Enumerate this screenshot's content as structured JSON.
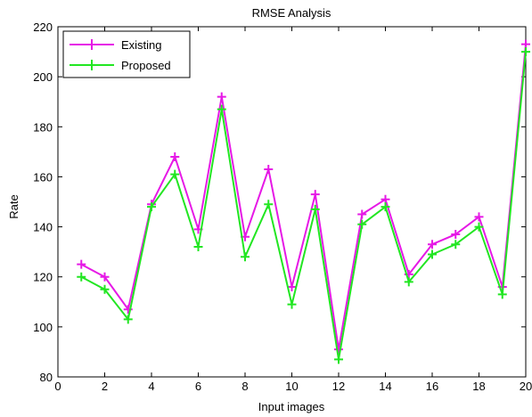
{
  "chart_data": {
    "type": "line",
    "title": "RMSE Analysis",
    "xlabel": "Input images",
    "ylabel": "Rate",
    "xlim": [
      0,
      20
    ],
    "ylim": [
      80,
      220
    ],
    "xticks": [
      0,
      2,
      4,
      6,
      8,
      10,
      12,
      14,
      16,
      18,
      20
    ],
    "yticks": [
      80,
      100,
      120,
      140,
      160,
      180,
      200,
      220
    ],
    "grid": false,
    "legend_position": "top-left",
    "x": [
      1,
      2,
      3,
      4,
      5,
      6,
      7,
      8,
      9,
      10,
      11,
      12,
      13,
      14,
      15,
      16,
      17,
      18,
      19,
      20
    ],
    "series": [
      {
        "name": "Existing",
        "color": "#e619e6",
        "marker": "plus",
        "values": [
          125,
          120,
          107,
          149,
          168,
          139,
          192,
          136,
          163,
          116,
          153,
          91,
          145,
          151,
          121,
          133,
          137,
          144,
          116,
          213
        ]
      },
      {
        "name": "Proposed",
        "color": "#22e622",
        "marker": "plus",
        "values": [
          120,
          115,
          103,
          148,
          161,
          132,
          187,
          128,
          149,
          109,
          147,
          87,
          141,
          148,
          118,
          129,
          133,
          140,
          113,
          210
        ]
      }
    ]
  }
}
